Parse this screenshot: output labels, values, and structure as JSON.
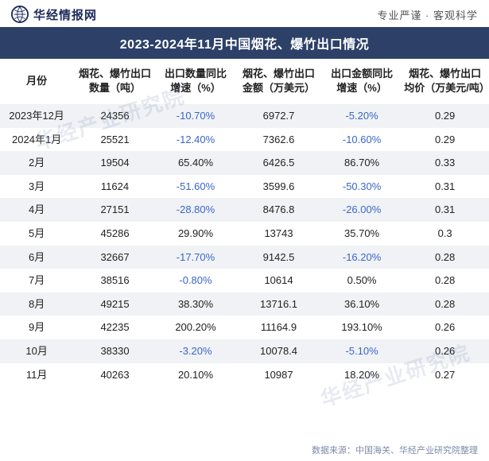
{
  "header": {
    "brand": "华经情报网",
    "tagline": "专业严谨 · 客观科学"
  },
  "title": "2023-2024年11月中国烟花、爆竹出口情况",
  "columns": [
    "月份",
    "烟花、爆竹出口数量（吨）",
    "出口数量同比增速（%）",
    "烟花、爆竹出口金额（万美元）",
    "出口金额同比增速（%）",
    "烟花、爆竹出口均价（万美元/吨）"
  ],
  "col_widths": [
    "15%",
    "17%",
    "16%",
    "18%",
    "16%",
    "18%"
  ],
  "rows": [
    {
      "month": "2023年12月",
      "qty": "24356",
      "qty_yoy": "-10.70%",
      "amt": "6972.7",
      "amt_yoy": "-5.20%",
      "price": "0.29"
    },
    {
      "month": "2024年1月",
      "qty": "25521",
      "qty_yoy": "-12.40%",
      "amt": "7362.6",
      "amt_yoy": "-10.60%",
      "price": "0.29"
    },
    {
      "month": "2月",
      "qty": "19504",
      "qty_yoy": "65.40%",
      "amt": "6426.5",
      "amt_yoy": "86.70%",
      "price": "0.33"
    },
    {
      "month": "3月",
      "qty": "11624",
      "qty_yoy": "-51.60%",
      "amt": "3599.6",
      "amt_yoy": "-50.30%",
      "price": "0.31"
    },
    {
      "month": "4月",
      "qty": "27151",
      "qty_yoy": "-28.80%",
      "amt": "8476.8",
      "amt_yoy": "-26.00%",
      "price": "0.31"
    },
    {
      "month": "5月",
      "qty": "45286",
      "qty_yoy": "29.90%",
      "amt": "13743",
      "amt_yoy": "35.70%",
      "price": "0.3"
    },
    {
      "month": "6月",
      "qty": "32667",
      "qty_yoy": "-17.70%",
      "amt": "9142.5",
      "amt_yoy": "-16.20%",
      "price": "0.28"
    },
    {
      "month": "7月",
      "qty": "38516",
      "qty_yoy": "-0.80%",
      "amt": "10614",
      "amt_yoy": "0.50%",
      "price": "0.28"
    },
    {
      "month": "8月",
      "qty": "49215",
      "qty_yoy": "38.30%",
      "amt": "13716.1",
      "amt_yoy": "36.10%",
      "price": "0.28"
    },
    {
      "month": "9月",
      "qty": "42235",
      "qty_yoy": "200.20%",
      "amt": "11164.9",
      "amt_yoy": "193.10%",
      "price": "0.26"
    },
    {
      "month": "10月",
      "qty": "38330",
      "qty_yoy": "-3.20%",
      "amt": "10078.4",
      "amt_yoy": "-5.10%",
      "price": "0.26"
    },
    {
      "month": "11月",
      "qty": "40263",
      "qty_yoy": "20.10%",
      "amt": "10987",
      "amt_yoy": "18.20%",
      "price": "0.27"
    }
  ],
  "footer": "数据来源：中国海关、华经产业研究院整理",
  "watermark": "华经产业研究院",
  "font_sizes": {
    "title": 16,
    "header_cell": 13,
    "body_cell": 13,
    "footer": 11,
    "watermark": 26
  },
  "colors": {
    "title_bg": "#2d4168",
    "title_fg": "#ffffff",
    "row_alt_bg": "#f0f2f5",
    "negative_text": "#3a66c8",
    "text": "#222222",
    "footer_text": "#7b8aa8",
    "brand_text": "#1b2a5b",
    "watermark": "rgba(120,140,180,0.18)"
  }
}
